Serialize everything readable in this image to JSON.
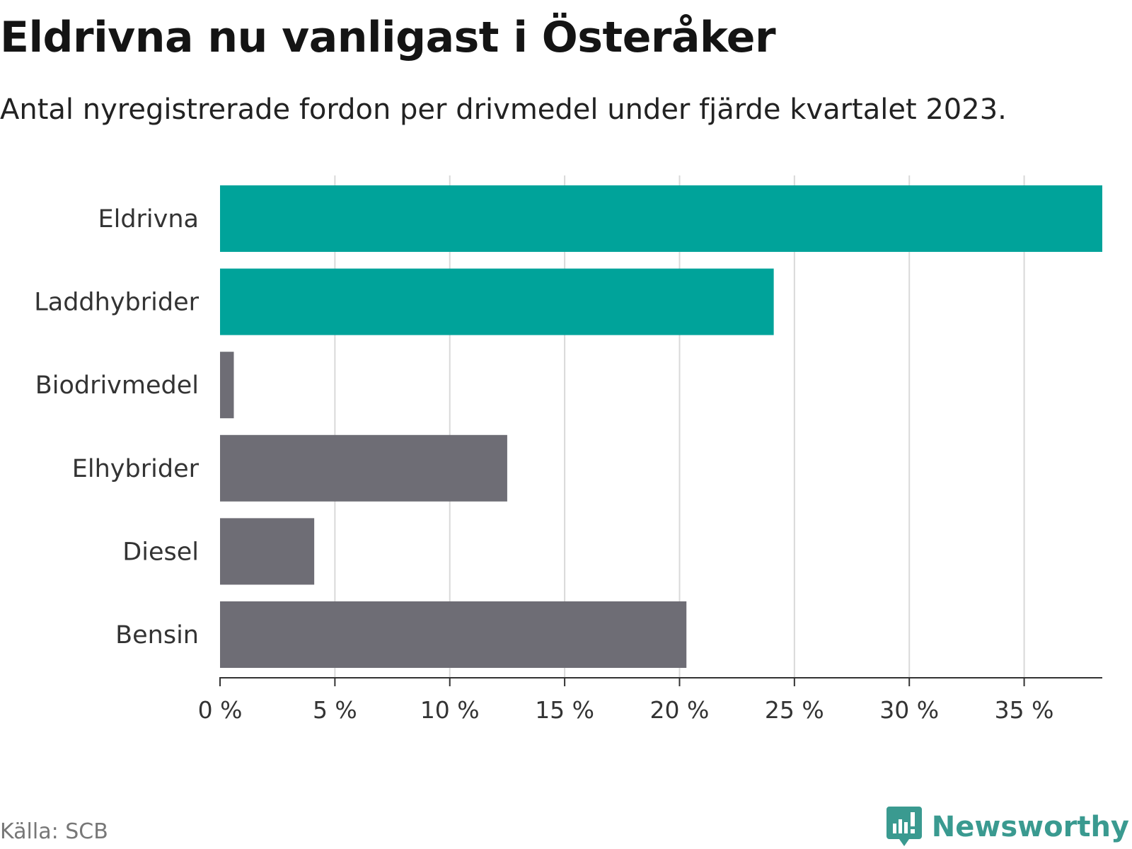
{
  "header": {
    "title": "Eldrivna nu vanligast i Österåker",
    "subtitle": "Antal nyregistrerade fordon per drivmedel under fjärde kvartalet 2023."
  },
  "footer": {
    "source": "Källa: SCB",
    "brand": "Newsworthy",
    "brand_icon": "newsworthy-logo-icon"
  },
  "colors": {
    "highlight": "#00a39a",
    "muted": "#6e6d75",
    "grid": "#d9d9d9",
    "axis": "#333333",
    "brand": "#3a9a90"
  },
  "chart_data": {
    "type": "bar",
    "orientation": "horizontal",
    "title": "Eldrivna nu vanligast i Österåker",
    "subtitle": "Antal nyregistrerade fordon per drivmedel under fjärde kvartalet 2023.",
    "categories": [
      "Eldrivna",
      "Laddhybrider",
      "Biodrivmedel",
      "Elhybrider",
      "Diesel",
      "Bensin"
    ],
    "values": [
      38.4,
      24.1,
      0.6,
      12.5,
      4.1,
      20.3
    ],
    "highlighted": [
      true,
      true,
      false,
      false,
      false,
      false
    ],
    "unit": "%",
    "xlim": [
      0,
      38.4
    ],
    "xticks": [
      0,
      5,
      10,
      15,
      20,
      25,
      30,
      35
    ],
    "xtick_labels": [
      "0 %",
      "5 %",
      "10 %",
      "15 %",
      "20 %",
      "25 %",
      "30 %",
      "35 %"
    ],
    "xlabel": "",
    "ylabel": "",
    "grid": true
  }
}
